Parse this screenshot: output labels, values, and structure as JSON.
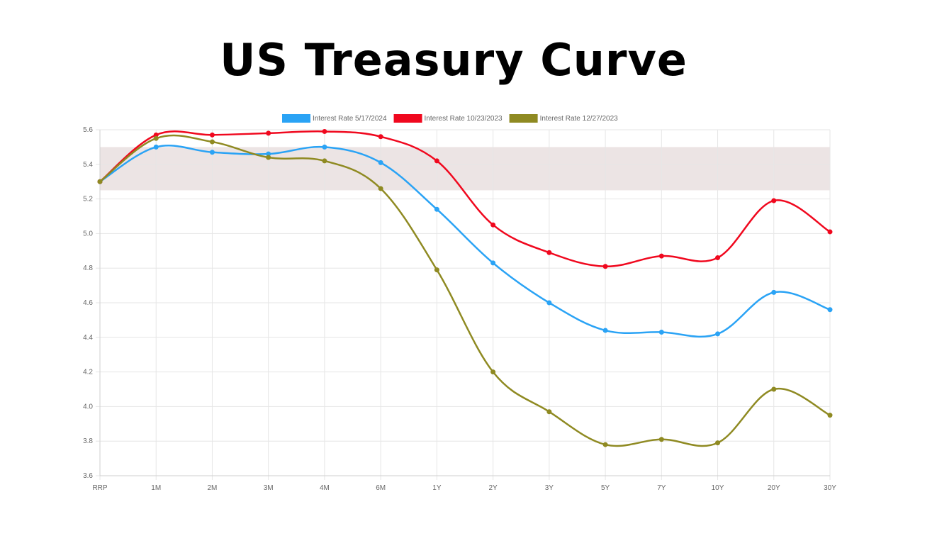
{
  "title": "US Treasury Curve",
  "chart_data": {
    "type": "line",
    "title": "US Treasury Curve",
    "xlabel": "",
    "ylabel": "",
    "categories": [
      "RRP",
      "1M",
      "2M",
      "3M",
      "4M",
      "6M",
      "1Y",
      "2Y",
      "3Y",
      "5Y",
      "7Y",
      "10Y",
      "20Y",
      "30Y"
    ],
    "ylim": [
      3.6,
      5.6
    ],
    "yticks": [
      "3.6",
      "3.8",
      "4.0",
      "4.2",
      "4.4",
      "4.6",
      "4.8",
      "5.0",
      "5.2",
      "5.4",
      "5.6"
    ],
    "grid": true,
    "legend_position": "top",
    "band": {
      "from": 5.25,
      "to": 5.5,
      "color": "#ece4e4"
    },
    "series": [
      {
        "name": "Interest Rate 5/17/2024",
        "color": "#2aa3f5",
        "values": [
          5.3,
          5.5,
          5.47,
          5.46,
          5.5,
          5.41,
          5.14,
          4.83,
          4.6,
          4.44,
          4.43,
          4.42,
          4.66,
          4.56
        ]
      },
      {
        "name": "Interest Rate 10/23/2023",
        "color": "#f0081e",
        "values": [
          5.3,
          5.57,
          5.57,
          5.58,
          5.59,
          5.56,
          5.42,
          5.05,
          4.89,
          4.81,
          4.87,
          4.86,
          5.19,
          5.01
        ]
      },
      {
        "name": "Interest Rate 12/27/2023",
        "color": "#8f8a22",
        "values": [
          5.3,
          5.55,
          5.53,
          5.44,
          5.42,
          5.26,
          4.79,
          4.2,
          3.97,
          3.78,
          3.81,
          3.79,
          4.1,
          3.95
        ]
      }
    ]
  }
}
